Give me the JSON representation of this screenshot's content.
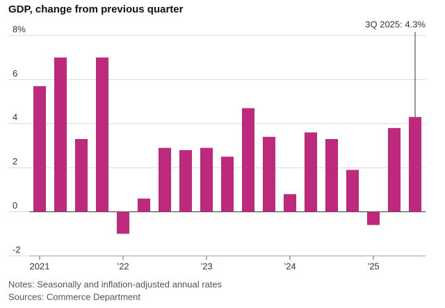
{
  "chart_data": {
    "type": "bar",
    "title": "GDP, change from previous quarter",
    "annotation": "3Q 2025: 4.3%",
    "notes": "Notes: Seasonally and inflation-adjusted annual rates",
    "sources": "Sources: Commerce Department",
    "categories": [
      "2021",
      null,
      null,
      null,
      "’22",
      null,
      null,
      null,
      "’23",
      null,
      null,
      null,
      "’24",
      null,
      null,
      null,
      "’25",
      null,
      null
    ],
    "values": [
      5.7,
      7.0,
      3.3,
      7.0,
      -1.0,
      0.6,
      2.9,
      2.8,
      2.9,
      2.5,
      4.7,
      3.4,
      0.8,
      3.6,
      3.3,
      1.9,
      -0.6,
      3.8,
      4.3
    ],
    "color": "#bd2a7d",
    "ylim": [
      -2,
      8
    ],
    "yticks": [
      -2,
      0,
      2,
      4,
      6,
      {
        "value": 8,
        "label": "8%"
      }
    ],
    "grid": true
  }
}
